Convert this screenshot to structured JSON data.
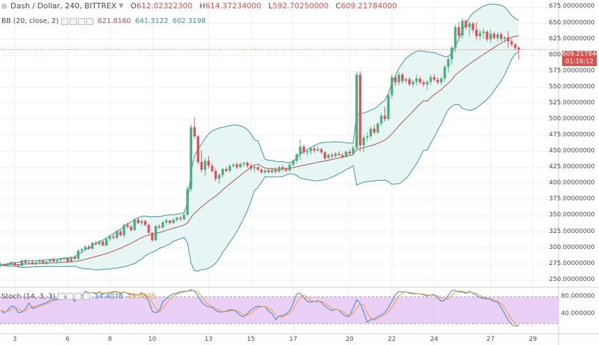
{
  "header": {
    "symbol": "Dash / Dollar, 240, BITTREX",
    "open_label": "O",
    "open": "612.02322300",
    "high_label": "H",
    "high": "614.37234000",
    "low_label": "L",
    "low": "592.70250000",
    "close_label": "C",
    "close": "609.21784000"
  },
  "bb_legend": {
    "name": "BB (20, close, 2)",
    "basis": "621.8160",
    "upper": "641.3122",
    "lower": "602.3198"
  },
  "stoch_legend": {
    "name": "Stoch (14, 3, 3)",
    "k": "34.4078",
    "d": "43.5075"
  },
  "price_label": "609.21784000",
  "countdown_label": "01:16:12",
  "colors": {
    "up": "#4caf7d",
    "down": "#e0525b",
    "bb_basis": "#a0524f",
    "bb_band": "#3c8f95",
    "bb_fill": "#e8f5f5",
    "stoch_k": "#2f7fd6",
    "stoch_d": "#f39c2f",
    "stoch_fill": "#e6c8f5",
    "price_line": "#d9534f"
  },
  "chart_data": {
    "type": "candlestick",
    "y_axis": {
      "range": [
        240,
        682
      ],
      "ticks": [
        "675.00000000",
        "650.00000000",
        "625.00000000",
        "600.00000000",
        "575.00000000",
        "550.00000000",
        "525.00000000",
        "500.00000000",
        "475.00000000",
        "450.00000000",
        "425.00000000",
        "400.00000000",
        "375.00000000",
        "350.00000000",
        "325.00000000",
        "300.00000000",
        "275.00000000",
        "250.00000000"
      ]
    },
    "x_axis": {
      "ticks": [
        "3",
        "6",
        "8",
        "10",
        "13",
        "15",
        "17",
        "20",
        "22",
        "24",
        "27",
        "29"
      ],
      "tick_bars": [
        4,
        19,
        31,
        43,
        59,
        71,
        83,
        99,
        111,
        123,
        139,
        151
      ]
    },
    "candles": [
      [
        272,
        270,
        278,
        274
      ],
      [
        274,
        271,
        276,
        273
      ],
      [
        273,
        270,
        277,
        275
      ],
      [
        275,
        273,
        279,
        277
      ],
      [
        277,
        272,
        278,
        273
      ],
      [
        273,
        270,
        275,
        272
      ],
      [
        272,
        271,
        282,
        280
      ],
      [
        280,
        276,
        283,
        277
      ],
      [
        277,
        275,
        279,
        278
      ],
      [
        278,
        274,
        281,
        276
      ],
      [
        276,
        273,
        279,
        278
      ],
      [
        278,
        276,
        281,
        280
      ],
      [
        280,
        275,
        282,
        277
      ],
      [
        277,
        274,
        279,
        279
      ],
      [
        279,
        276,
        283,
        282
      ],
      [
        282,
        278,
        285,
        279
      ],
      [
        279,
        276,
        282,
        281
      ],
      [
        281,
        277,
        284,
        283
      ],
      [
        283,
        280,
        286,
        284
      ],
      [
        284,
        277,
        286,
        279
      ],
      [
        279,
        278,
        287,
        286
      ],
      [
        286,
        282,
        289,
        283
      ],
      [
        283,
        282,
        298,
        296
      ],
      [
        296,
        292,
        300,
        298
      ],
      [
        298,
        296,
        304,
        302
      ],
      [
        302,
        297,
        305,
        299
      ],
      [
        299,
        298,
        310,
        308
      ],
      [
        308,
        304,
        311,
        306
      ],
      [
        306,
        304,
        312,
        310
      ],
      [
        310,
        303,
        312,
        304
      ],
      [
        304,
        303,
        316,
        314
      ],
      [
        314,
        310,
        320,
        318
      ],
      [
        318,
        314,
        323,
        316
      ],
      [
        316,
        313,
        328,
        326
      ],
      [
        326,
        318,
        329,
        320
      ],
      [
        320,
        316,
        338,
        336
      ],
      [
        336,
        330,
        340,
        333
      ],
      [
        333,
        326,
        336,
        328
      ],
      [
        328,
        327,
        346,
        344
      ],
      [
        344,
        337,
        347,
        339
      ],
      [
        339,
        335,
        344,
        342
      ],
      [
        342,
        334,
        344,
        336
      ],
      [
        336,
        322,
        338,
        324
      ],
      [
        324,
        310,
        325,
        312
      ],
      [
        312,
        311,
        336,
        334
      ],
      [
        334,
        330,
        337,
        332
      ],
      [
        332,
        330,
        342,
        340
      ],
      [
        340,
        336,
        346,
        343
      ],
      [
        343,
        337,
        344,
        339
      ],
      [
        339,
        338,
        346,
        344
      ],
      [
        344,
        341,
        349,
        347
      ],
      [
        347,
        342,
        350,
        345
      ],
      [
        345,
        343,
        354,
        352
      ],
      [
        352,
        350,
        396,
        392
      ],
      [
        392,
        388,
        492,
        488
      ],
      [
        488,
        470,
        504,
        474
      ],
      [
        474,
        430,
        476,
        434
      ],
      [
        434,
        418,
        452,
        422
      ],
      [
        422,
        412,
        440,
        436
      ],
      [
        436,
        424,
        444,
        428
      ],
      [
        428,
        418,
        432,
        420
      ],
      [
        420,
        404,
        424,
        408
      ],
      [
        408,
        400,
        416,
        414
      ],
      [
        414,
        410,
        425,
        423
      ],
      [
        423,
        418,
        427,
        420
      ],
      [
        420,
        418,
        430,
        428
      ],
      [
        428,
        425,
        432,
        430
      ],
      [
        430,
        423,
        434,
        426
      ],
      [
        426,
        424,
        433,
        431
      ],
      [
        431,
        427,
        434,
        433
      ],
      [
        433,
        425,
        435,
        428
      ],
      [
        428,
        420,
        432,
        424
      ],
      [
        424,
        418,
        428,
        426
      ],
      [
        426,
        420,
        428,
        422
      ],
      [
        422,
        416,
        424,
        418
      ],
      [
        418,
        415,
        423,
        421
      ],
      [
        421,
        417,
        424,
        418
      ],
      [
        418,
        416,
        423,
        422
      ],
      [
        422,
        416,
        426,
        419
      ],
      [
        419,
        417,
        428,
        426
      ],
      [
        426,
        420,
        429,
        423
      ],
      [
        423,
        418,
        426,
        421
      ],
      [
        421,
        419,
        432,
        430
      ],
      [
        430,
        427,
        438,
        436
      ],
      [
        436,
        432,
        448,
        446
      ],
      [
        446,
        437,
        469,
        458
      ],
      [
        458,
        446,
        461,
        449
      ],
      [
        449,
        444,
        453,
        451
      ],
      [
        451,
        446,
        457,
        455
      ],
      [
        455,
        448,
        458,
        452
      ],
      [
        452,
        450,
        458,
        454
      ],
      [
        454,
        447,
        456,
        449
      ],
      [
        449,
        437,
        451,
        440
      ],
      [
        440,
        438,
        447,
        445
      ],
      [
        445,
        439,
        448,
        443
      ],
      [
        443,
        441,
        450,
        447
      ],
      [
        447,
        443,
        451,
        445
      ],
      [
        445,
        440,
        448,
        442
      ],
      [
        442,
        441,
        452,
        450
      ],
      [
        450,
        445,
        454,
        447
      ],
      [
        447,
        444,
        460,
        456
      ],
      [
        456,
        454,
        575,
        570
      ],
      [
        570,
        450,
        575,
        460
      ],
      [
        460,
        449,
        476,
        472
      ],
      [
        472,
        466,
        480,
        474
      ],
      [
        474,
        470,
        490,
        486
      ],
      [
        486,
        477,
        492,
        480
      ],
      [
        480,
        478,
        496,
        494
      ],
      [
        494,
        490,
        510,
        506
      ],
      [
        506,
        497,
        520,
        501
      ],
      [
        501,
        498,
        541,
        538
      ],
      [
        538,
        533,
        571,
        566
      ],
      [
        566,
        552,
        570,
        558
      ],
      [
        558,
        553,
        574,
        570
      ],
      [
        570,
        556,
        573,
        560
      ],
      [
        560,
        556,
        566,
        563
      ],
      [
        563,
        552,
        566,
        555
      ],
      [
        555,
        550,
        562,
        559
      ],
      [
        559,
        553,
        570,
        564
      ],
      [
        564,
        555,
        567,
        558
      ],
      [
        558,
        551,
        562,
        555
      ],
      [
        555,
        546,
        561,
        559
      ],
      [
        559,
        554,
        570,
        566
      ],
      [
        566,
        559,
        571,
        562
      ],
      [
        562,
        555,
        566,
        558
      ],
      [
        558,
        554,
        567,
        564
      ],
      [
        564,
        559,
        585,
        582
      ],
      [
        582,
        573,
        597,
        594
      ],
      [
        594,
        586,
        615,
        612
      ],
      [
        612,
        605,
        648,
        644
      ],
      [
        644,
        627,
        652,
        631
      ],
      [
        631,
        626,
        658,
        654
      ],
      [
        654,
        640,
        656,
        644
      ],
      [
        644,
        630,
        653,
        650
      ],
      [
        650,
        635,
        652,
        640
      ],
      [
        640,
        624,
        652,
        630
      ],
      [
        630,
        623,
        640,
        635
      ],
      [
        635,
        626,
        642,
        637
      ],
      [
        637,
        622,
        639,
        625
      ],
      [
        625,
        620,
        640,
        634
      ],
      [
        634,
        625,
        637,
        627
      ],
      [
        627,
        622,
        636,
        633
      ],
      [
        633,
        622,
        636,
        626
      ],
      [
        626,
        620,
        630,
        628
      ],
      [
        628,
        612,
        638,
        622
      ],
      [
        622,
        614,
        626,
        617
      ],
      [
        617,
        608,
        619,
        612
      ],
      [
        612,
        593,
        614,
        609
      ]
    ],
    "stoch_ticks": [
      "80.000000",
      "40.000000"
    ],
    "stoch_range": [
      0,
      100
    ],
    "stoch_bands": [
      20,
      80
    ]
  }
}
